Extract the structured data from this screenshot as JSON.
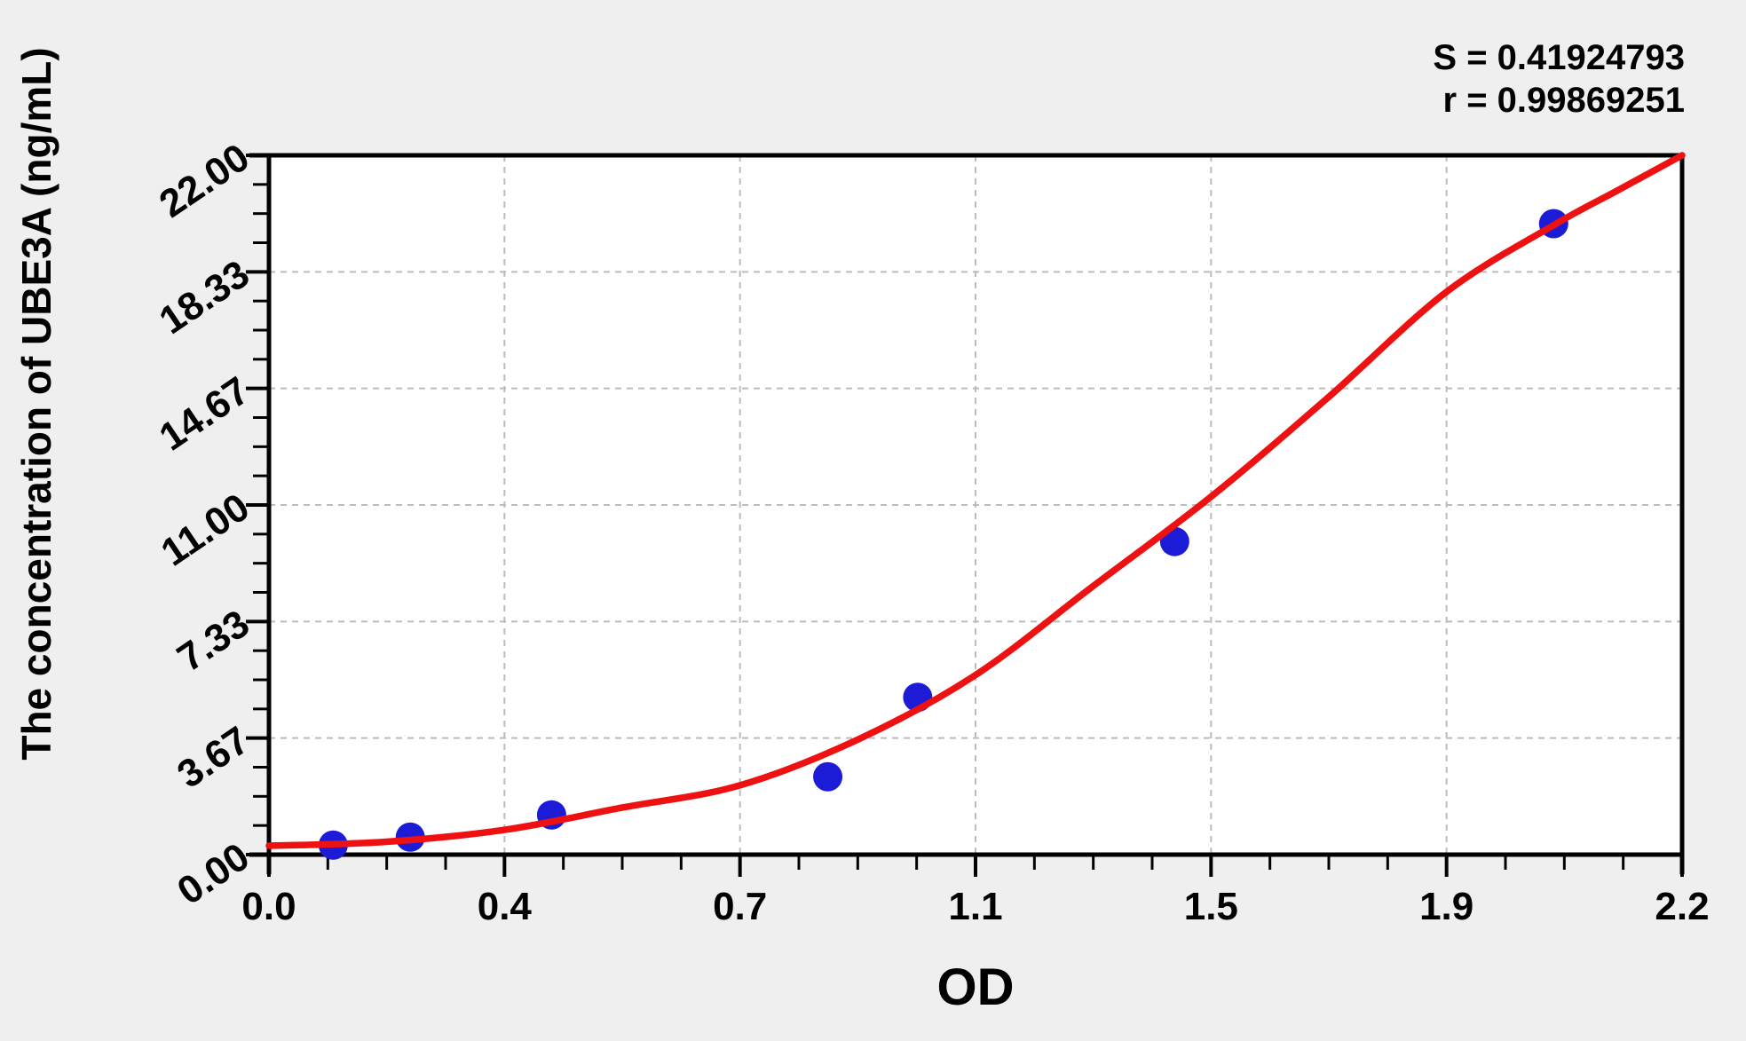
{
  "stats": {
    "line1": "S = 0.41924793",
    "line2": "r = 0.99869251"
  },
  "chart_data": {
    "type": "scatter",
    "title": "",
    "xlabel": "OD",
    "ylabel": "The concentration of UBE3A (ng/mL)",
    "xlim": [
      0,
      2.2
    ],
    "ylim": [
      0,
      22
    ],
    "x_tick_labels": [
      "0.0",
      "0.4",
      "0.7",
      "1.1",
      "1.5",
      "1.9",
      "2.2"
    ],
    "y_tick_labels": [
      "0.00",
      "3.67",
      "7.33",
      "11.00",
      "14.67",
      "18.33",
      "22.00"
    ],
    "minor_ticks_between_majors": 3,
    "grid": "dashed gray lines at every major tick, both axes",
    "legend_position": "none",
    "series": [
      {
        "name": "standard points",
        "kind": "scatter",
        "color": "#1c1cd6",
        "marker": "circle",
        "points": [
          [
            0.1,
            0.3
          ],
          [
            0.22,
            0.55
          ],
          [
            0.44,
            1.25
          ],
          [
            0.87,
            2.45
          ],
          [
            1.01,
            4.95
          ],
          [
            1.41,
            9.85
          ],
          [
            2.0,
            19.85
          ]
        ]
      },
      {
        "name": "fitted 4PL standard curve",
        "kind": "line",
        "color": "#ee1111",
        "points": [
          [
            0.0,
            0.28
          ],
          [
            0.18,
            0.4
          ],
          [
            0.367,
            0.78
          ],
          [
            0.55,
            1.48
          ],
          [
            0.733,
            2.18
          ],
          [
            0.92,
            3.65
          ],
          [
            1.1,
            5.65
          ],
          [
            1.28,
            8.4
          ],
          [
            1.466,
            11.25
          ],
          [
            1.65,
            14.4
          ],
          [
            1.833,
            17.7
          ],
          [
            2.0,
            19.8
          ],
          [
            2.1,
            20.9
          ],
          [
            2.2,
            22.0
          ]
        ]
      }
    ],
    "colors": {
      "curve": "#ee1111",
      "point": "#1c1cd6",
      "grid": "#bcbcbc",
      "axis": "#000000",
      "plot_bg": "#ffffff",
      "page_bg": "#efefef"
    }
  }
}
